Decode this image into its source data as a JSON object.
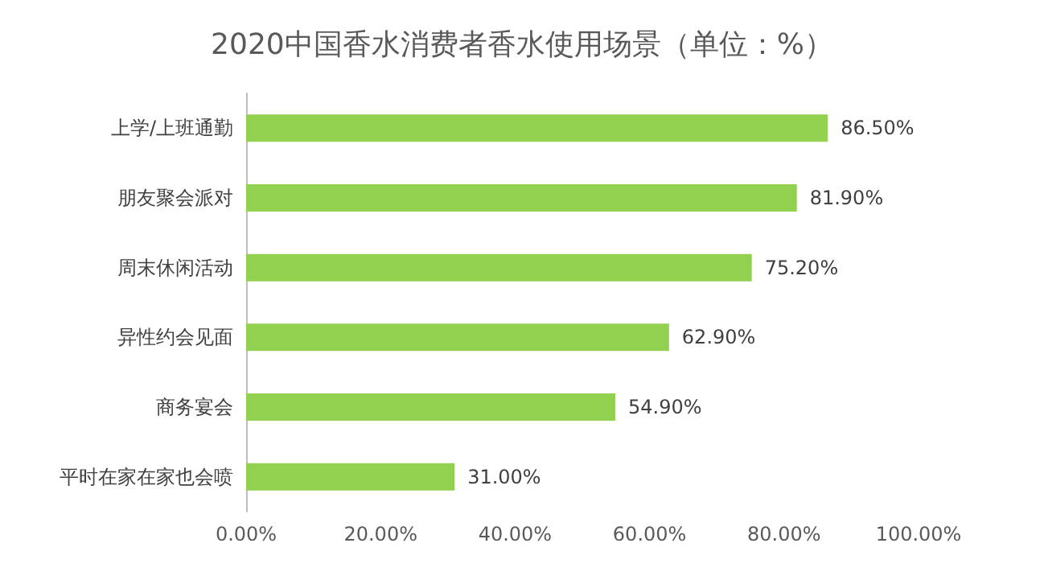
{
  "chart_data": {
    "type": "bar",
    "orientation": "horizontal",
    "title": "2020中国香水消费者香水使用场景（单位：%）",
    "categories": [
      "上学/上班通勤",
      "朋友聚会派对",
      "周末休闲活动",
      "异性约会见面",
      "商务宴会",
      "平时在家在家也会喷"
    ],
    "values": [
      86.5,
      81.9,
      75.2,
      62.9,
      54.9,
      31.0
    ],
    "value_labels": [
      "86.50%",
      "81.90%",
      "75.20%",
      "62.90%",
      "54.90%",
      "31.00%"
    ],
    "color": "#92d050",
    "xlim": [
      0,
      100
    ],
    "xticks": [
      {
        "value": 0,
        "label": "0.00%"
      },
      {
        "value": 20,
        "label": "20.00%"
      },
      {
        "value": 40,
        "label": "40.00%"
      },
      {
        "value": 60,
        "label": "60.00%"
      },
      {
        "value": 80,
        "label": "80.00%"
      },
      {
        "value": 100,
        "label": "100.00%"
      }
    ],
    "grid": false
  }
}
